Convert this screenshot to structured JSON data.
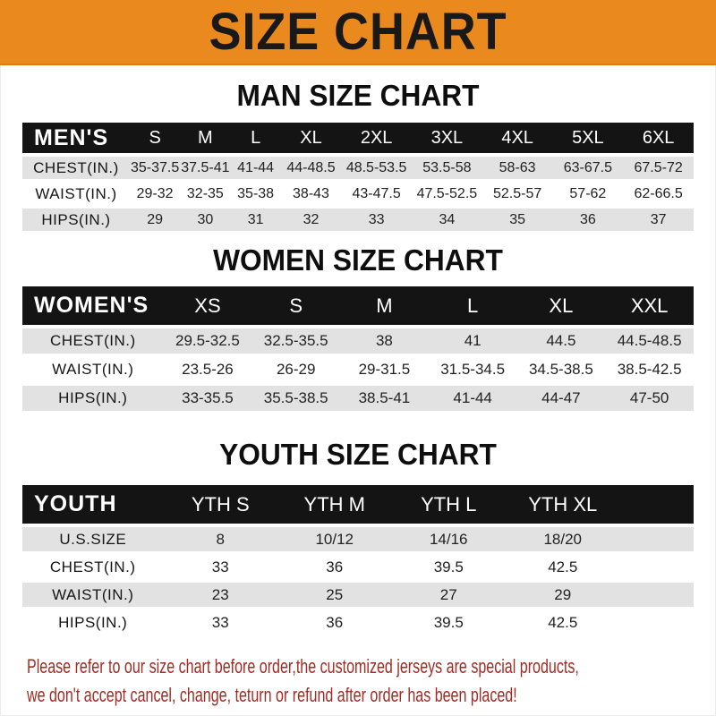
{
  "banner": {
    "title": "SIZE CHART"
  },
  "men": {
    "title": "MAN SIZE CHART",
    "header_label": "MEN'S",
    "columns": [
      "S",
      "M",
      "L",
      "XL",
      "2XL",
      "3XL",
      "4XL",
      "5XL",
      "6XL"
    ],
    "rows": [
      {
        "label": "CHEST(IN.)",
        "values": [
          "35-37.5",
          "37.5-41",
          "41-44",
          "44-48.5",
          "48.5-53.5",
          "53.5-58",
          "58-63",
          "63-67.5",
          "67.5-72"
        ]
      },
      {
        "label": "WAIST(IN.)",
        "values": [
          "29-32",
          "32-35",
          "35-38",
          "38-43",
          "43-47.5",
          "47.5-52.5",
          "52.5-57",
          "57-62",
          "62-66.5"
        ]
      },
      {
        "label": "HIPS(IN.)",
        "values": [
          "29",
          "30",
          "31",
          "32",
          "33",
          "34",
          "35",
          "36",
          "37"
        ]
      }
    ]
  },
  "women": {
    "title": "WOMEN SIZE CHART",
    "header_label": "WOMEN'S",
    "columns": [
      "XS",
      "S",
      "M",
      "L",
      "XL",
      "XXL"
    ],
    "rows": [
      {
        "label": "CHEST(IN.)",
        "values": [
          "29.5-32.5",
          "32.5-35.5",
          "38",
          "41",
          "44.5",
          "44.5-48.5"
        ]
      },
      {
        "label": "WAIST(IN.)",
        "values": [
          "23.5-26",
          "26-29",
          "29-31.5",
          "31.5-34.5",
          "34.5-38.5",
          "38.5-42.5"
        ]
      },
      {
        "label": "HIPS(IN.)",
        "values": [
          "33-35.5",
          "35.5-38.5",
          "38.5-41",
          "41-44",
          "44-47",
          "47-50"
        ]
      }
    ]
  },
  "youth": {
    "title": "YOUTH SIZE CHART",
    "header_label": "YOUTH",
    "columns": [
      "YTH S",
      "YTH M",
      "YTH L",
      "YTH XL"
    ],
    "rows": [
      {
        "label": "U.S.SIZE",
        "values": [
          "8",
          "10/12",
          "14/16",
          "18/20"
        ]
      },
      {
        "label": "CHEST(IN.)",
        "values": [
          "33",
          "36",
          "39.5",
          "42.5"
        ]
      },
      {
        "label": "WAIST(IN.)",
        "values": [
          "23",
          "25",
          "27",
          "29"
        ]
      },
      {
        "label": "HIPS(IN.)",
        "values": [
          "33",
          "36",
          "39.5",
          "42.5"
        ]
      }
    ]
  },
  "footer": {
    "line1": "Please refer to our size chart before order,the customized jerseys are special products,",
    "line2": "we don't accept cancel, change, teturn or refund after order has been placed!"
  },
  "colors": {
    "banner_bg": "#EA8A1E",
    "banner_text": "#191919",
    "header_bar_bg": "#141414",
    "header_bar_text": "#FFFFFF",
    "stripe_gray": "#E2E2E2",
    "body_text": "#222222",
    "footer_red": "#A32B24"
  }
}
